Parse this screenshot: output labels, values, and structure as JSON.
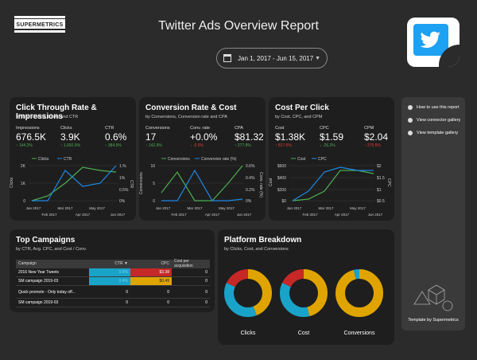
{
  "brand": {
    "logo_text": "SUPERMETRICS"
  },
  "header": {
    "title": "Twitter Ads Overview Report",
    "date_range": "Jan 1, 2017 - Jun 15, 2017"
  },
  "colors": {
    "twitter_blue": "#1da1f2",
    "green": "#4caf50",
    "red": "#e53935",
    "blue": "#1e88e5",
    "yellow": "#e0a400",
    "cyan": "#1aa3c9"
  },
  "ctr_panel": {
    "title": "Click Through Rate & Impressions",
    "subtitle": "by Impressions, Clicks and CTR",
    "metrics": [
      {
        "label": "Impressions",
        "value": "676.5K",
        "delta": "↑ 144.2%",
        "dir": "up"
      },
      {
        "label": "Clicks",
        "value": "3.9K",
        "delta": "↑ 1,092.9%",
        "dir": "up"
      },
      {
        "label": "CTR",
        "value": "0.6%",
        "delta": "↑ 384.5%",
        "dir": "up"
      }
    ],
    "legend": [
      "Clicks",
      "CTR"
    ],
    "ylabel_left": "Clicks",
    "ylabel_right": "CTR",
    "yticks_left": [
      "2K",
      "1K",
      "0"
    ],
    "yticks_right": [
      "1.%",
      "1%",
      "0.5%",
      "0%"
    ],
    "xticks_top": [
      "Jan 2017",
      "Mar 2017",
      "May 2017",
      "Jun 2017"
    ],
    "xticks_bottom": [
      "Feb 2017",
      "Apr 2017"
    ]
  },
  "conv_panel": {
    "title": "Conversion Rate & Cost",
    "subtitle": "by Conversions, Conversion rate and CPA",
    "metrics": [
      {
        "label": "Conversions",
        "value": "17",
        "delta": "↑ 142.9%",
        "dir": "up"
      },
      {
        "label": "Conv. rate",
        "value": "+0.0%",
        "delta": "↓ -0.5%",
        "dir": "down"
      },
      {
        "label": "CPA",
        "value": "$81.32",
        "delta": "↑ 277.8%",
        "dir": "up"
      }
    ],
    "legend": [
      "Conversions",
      "Conversion rate (%)"
    ],
    "ylabel_left": "Conversions",
    "ylabel_right": "Conv. rate (%)",
    "yticks_left": [
      "10",
      "5",
      "0"
    ],
    "yticks_right": [
      "0.6%",
      "0.4%",
      "0.2%",
      "0%"
    ],
    "xticks_top": [
      "Jan 2017",
      "Mar 2017",
      "May 2017",
      "Jun 2017"
    ],
    "xticks_bottom": [
      "Feb 2017",
      "Apr 2017"
    ]
  },
  "cpc_panel": {
    "title": "Cost Per Click",
    "subtitle": "by Cost, CPC, and CPM",
    "metrics": [
      {
        "label": "Cost",
        "value": "$1.38K",
        "delta": "↑ 817.5%",
        "dir": "down"
      },
      {
        "label": "CPC",
        "value": "$1.59",
        "delta": "↓ -25.2%",
        "dir": "up"
      },
      {
        "label": "CPM",
        "value": "$2.04",
        "delta": "↑ 275.5%",
        "dir": "down"
      }
    ],
    "legend": [
      "Cost",
      "CPC"
    ],
    "ylabel_left": "Cost",
    "ylabel_right": "CPC",
    "yticks_left": [
      "$600",
      "$400",
      "$200",
      "$0"
    ],
    "yticks_right": [
      "$2",
      "$1.5",
      "$1",
      "$0.5"
    ],
    "xticks_top": [
      "Jan 2017",
      "Mar 2017",
      "May 2017",
      "Jun 2017"
    ],
    "xticks_bottom": [
      "Feb 2017",
      "Apr 2017"
    ]
  },
  "campaigns": {
    "title": "Top Campaigns",
    "subtitle": "by CTR, Avg. CPC, and Cost / Conv.",
    "headers": [
      "Campaign",
      "CTR ▼",
      "CPC",
      "Cost per acquisition"
    ],
    "rows": [
      {
        "name": "2016 New Year Tweets",
        "ctr": "0.6%",
        "cpc": "$3.38",
        "cpa": "0"
      },
      {
        "name": "SM campaign 2019-03",
        "ctr": "0.4%",
        "cpc": "$0.49",
        "cpa": "0"
      },
      {
        "name": "Quick promote - Only today off...",
        "ctr": "0",
        "cpc": "0",
        "cpa": "0"
      },
      {
        "name": "SM campaign 2019-03",
        "ctr": "0",
        "cpc": "0",
        "cpa": "0"
      }
    ]
  },
  "platform": {
    "title": "Platform Breakdown",
    "subtitle": "by Clicks, Cost, and Conversions",
    "donuts": [
      {
        "label": "Clicks",
        "slices": [
          {
            "share": 0.44,
            "color": "#e0a400"
          },
          {
            "share": 0.38,
            "color": "#1aa3c9"
          },
          {
            "share": 0.18,
            "color": "#c62828"
          }
        ]
      },
      {
        "label": "Cost",
        "slices": [
          {
            "share": 0.46,
            "color": "#e0a400"
          },
          {
            "share": 0.36,
            "color": "#1aa3c9"
          },
          {
            "share": 0.18,
            "color": "#c62828"
          }
        ]
      },
      {
        "label": "Conversions",
        "slices": [
          {
            "share": 0.96,
            "color": "#e0a400"
          },
          {
            "share": 0.04,
            "color": "#1aa3c9"
          }
        ]
      }
    ]
  },
  "sidebar": {
    "items": [
      "How to use this report",
      "View connector gallery",
      "View template gallery"
    ],
    "footer": "Template by Supermetrics"
  }
}
